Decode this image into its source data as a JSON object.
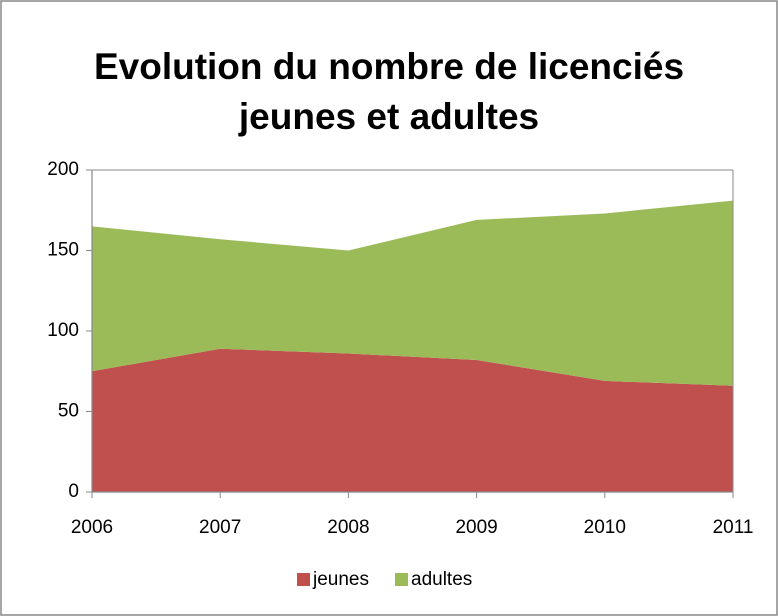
{
  "chart_data": {
    "type": "area",
    "stacked": true,
    "title": "Evolution du nombre de licenciés jeunes et adultes",
    "categories": [
      "2006",
      "2007",
      "2008",
      "2009",
      "2010",
      "2011"
    ],
    "series": [
      {
        "name": "jeunes",
        "color": "#c0504d",
        "values": [
          75,
          89,
          86,
          82,
          69,
          66
        ]
      },
      {
        "name": "adultes",
        "color": "#9bbb59",
        "values": [
          90,
          68,
          64,
          87,
          104,
          115
        ]
      }
    ],
    "ylim": [
      0,
      200
    ],
    "yticks": [
      0,
      50,
      100,
      150,
      200
    ],
    "grid": false,
    "legend": "bottom"
  }
}
